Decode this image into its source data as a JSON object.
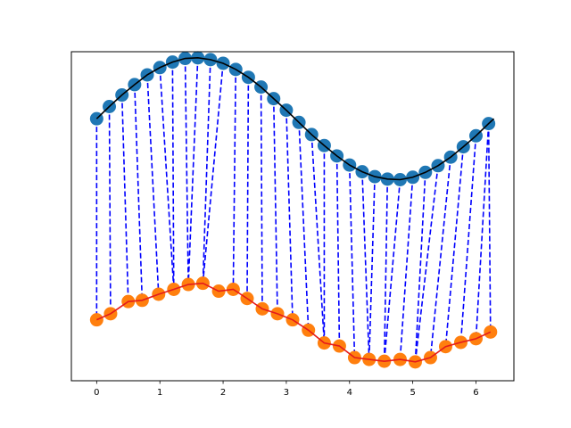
{
  "chart_data": {
    "type": "line",
    "title": "",
    "xlabel": "",
    "ylabel": "",
    "xlim": [
      -0.4,
      6.6
    ],
    "ylim": [
      -4.3,
      1.1
    ],
    "grid": false,
    "legend": "none",
    "x_ticks": [
      0,
      1,
      2,
      3,
      4,
      5,
      6
    ],
    "x_tick_labels": [
      "0",
      "1",
      "2",
      "3",
      "4",
      "5",
      "6"
    ],
    "y_ticks": [],
    "series": [
      {
        "role": "reference-curve",
        "color": "#000000",
        "x": [
          0,
          0.2,
          0.4,
          0.6,
          0.8,
          1.0,
          1.2,
          1.4,
          1.6,
          1.8,
          2.0,
          2.2,
          2.4,
          2.6,
          2.8,
          3.0,
          3.2,
          3.4,
          3.6,
          3.8,
          4.0,
          4.2,
          4.4,
          4.6,
          4.8,
          5.0,
          5.2,
          5.4,
          5.6,
          5.8,
          6.0,
          6.2,
          6.283
        ],
        "y": [
          0,
          0.2,
          0.39,
          0.56,
          0.72,
          0.84,
          0.93,
          0.99,
          1.0,
          0.97,
          0.91,
          0.81,
          0.68,
          0.52,
          0.33,
          0.14,
          -0.06,
          -0.26,
          -0.44,
          -0.61,
          -0.76,
          -0.87,
          -0.95,
          -0.99,
          -1.0,
          -0.96,
          -0.88,
          -0.77,
          -0.63,
          -0.46,
          -0.28,
          -0.08,
          0
        ]
      },
      {
        "role": "source-points",
        "color": "#1f77b4",
        "x": [
          0,
          0.2,
          0.4,
          0.6,
          0.8,
          1.0,
          1.2,
          1.4,
          1.6,
          1.8,
          2.0,
          2.2,
          2.4,
          2.6,
          2.8,
          3.0,
          3.2,
          3.4,
          3.6,
          3.8,
          4.0,
          4.2,
          4.4,
          4.6,
          4.8,
          5.0,
          5.2,
          5.4,
          5.6,
          5.8,
          6.0,
          6.2
        ],
        "y": [
          0,
          0.2,
          0.39,
          0.56,
          0.72,
          0.84,
          0.93,
          0.99,
          1.0,
          0.97,
          0.91,
          0.81,
          0.68,
          0.52,
          0.33,
          0.14,
          -0.06,
          -0.26,
          -0.44,
          -0.61,
          -0.76,
          -0.87,
          -0.95,
          -0.99,
          -1.0,
          -0.96,
          -0.88,
          -0.77,
          -0.63,
          -0.46,
          -0.28,
          -0.08
        ]
      },
      {
        "role": "matched-points",
        "color": "#ff7f0e",
        "line_color": "#e41a1c",
        "x": [
          0.0,
          0.22,
          0.5,
          0.72,
          0.98,
          1.22,
          1.45,
          1.68,
          1.93,
          2.16,
          2.38,
          2.62,
          2.86,
          3.1,
          3.35,
          3.6,
          3.84,
          4.08,
          4.31,
          4.55,
          4.8,
          5.04,
          5.28,
          5.52,
          5.76,
          6.0,
          6.23
        ],
        "y": [
          -3.3,
          -3.2,
          -3.0,
          -2.98,
          -2.88,
          -2.8,
          -2.72,
          -2.7,
          -2.83,
          -2.8,
          -2.95,
          -3.12,
          -3.2,
          -3.3,
          -3.47,
          -3.68,
          -3.73,
          -3.92,
          -3.95,
          -3.98,
          -3.95,
          -3.99,
          -3.92,
          -3.74,
          -3.67,
          -3.61,
          -3.5
        ]
      }
    ],
    "connections": {
      "color": "#0000ff",
      "style": "dashed",
      "pairs": [
        [
          0,
          0
        ],
        [
          1,
          1
        ],
        [
          2,
          2
        ],
        [
          3,
          3
        ],
        [
          4,
          4
        ],
        [
          5,
          5
        ],
        [
          6,
          5
        ],
        [
          7,
          6
        ],
        [
          8,
          6
        ],
        [
          9,
          7
        ],
        [
          10,
          7
        ],
        [
          11,
          9
        ],
        [
          12,
          10
        ],
        [
          13,
          11
        ],
        [
          14,
          12
        ],
        [
          15,
          13
        ],
        [
          16,
          14
        ],
        [
          17,
          15
        ],
        [
          18,
          15
        ],
        [
          19,
          16
        ],
        [
          20,
          17
        ],
        [
          21,
          18
        ],
        [
          22,
          18
        ],
        [
          23,
          19
        ],
        [
          24,
          19
        ],
        [
          25,
          20
        ],
        [
          26,
          21
        ],
        [
          27,
          21
        ],
        [
          28,
          22
        ],
        [
          29,
          23
        ],
        [
          30,
          24
        ],
        [
          31,
          25
        ],
        [
          31,
          26
        ]
      ]
    }
  }
}
